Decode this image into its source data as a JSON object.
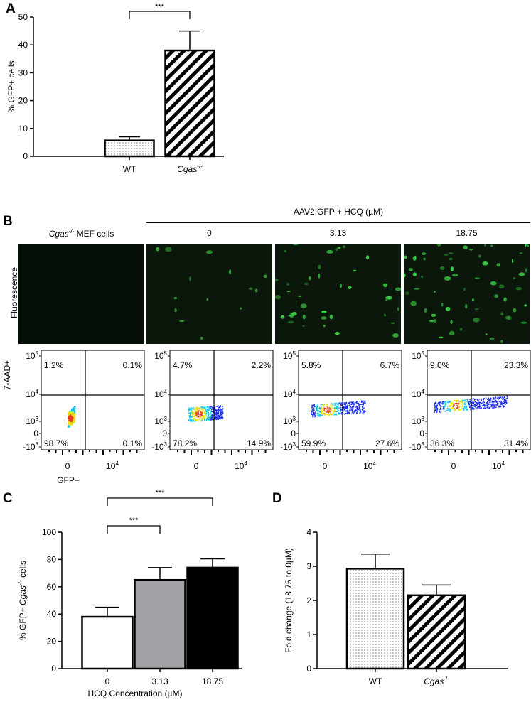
{
  "panel_labels": {
    "a": "A",
    "b": "B",
    "c": "C",
    "d": "D"
  },
  "chart_data": [
    {
      "id": "A",
      "type": "bar",
      "categories": [
        "WT",
        "Cgas-/-"
      ],
      "category_labels": [
        {
          "base": "WT",
          "sup": ""
        },
        {
          "base": "Cgas",
          "sup": "-/-"
        }
      ],
      "values": [
        5.7,
        38.0
      ],
      "errors": [
        1.3,
        7.0
      ],
      "patterns": [
        "dots",
        "stripes"
      ],
      "ylabel": "% GFP+ cells",
      "ylim": [
        0,
        50
      ],
      "yticks": [
        "0",
        "10",
        "20",
        "30",
        "40",
        "50"
      ],
      "significance": [
        {
          "from": 0,
          "to": 1,
          "label": "***"
        }
      ]
    },
    {
      "id": "C",
      "type": "bar",
      "categories": [
        "0",
        "3.13",
        "18.75"
      ],
      "values": [
        38.0,
        65.0,
        74.0
      ],
      "errors": [
        7.0,
        9.0,
        6.5
      ],
      "fills": [
        "#ffffff",
        "#a1a1a6",
        "#000000"
      ],
      "ylabel_base": "% GFP+ ",
      "ylabel_italic": "Cgas",
      "ylabel_sup": "-/-",
      "ylabel_tail": " cells",
      "xlabel": "HCQ Concentration (µM)",
      "ylim": [
        0,
        100
      ],
      "yticks": [
        "0",
        "20",
        "40",
        "60",
        "80",
        "100"
      ],
      "significance": [
        {
          "from": 0,
          "to": 1,
          "label": "***"
        },
        {
          "from": 0,
          "to": 2,
          "label": "***"
        }
      ]
    },
    {
      "id": "D",
      "type": "bar",
      "categories": [
        "WT",
        "Cgas-/-"
      ],
      "category_labels": [
        {
          "base": "WT",
          "sup": ""
        },
        {
          "base": "Cgas",
          "sup": "-/-"
        }
      ],
      "values": [
        2.93,
        2.15
      ],
      "errors": [
        0.43,
        0.3
      ],
      "patterns": [
        "dots",
        "stripes"
      ],
      "ylabel": "Fold change (18.75 to 0µM)",
      "ylim": [
        0,
        4
      ],
      "yticks": [
        "0",
        "1",
        "2",
        "3",
        "4"
      ]
    }
  ],
  "panel_b": {
    "header": "AAV2.GFP + HCQ (µM)",
    "row_label": "Fluorescence",
    "first_col_label_italic": "Cgas",
    "first_col_label_sup": "-/-",
    "first_col_label_tail": " MEF cells",
    "conditions": [
      "0",
      "3.13",
      "18.75"
    ],
    "flow_yaxis_label": "7-AAD+",
    "flow_xaxis_label": "GFP+",
    "flow_yticks": [
      {
        "base": "10",
        "sup": "5"
      },
      {
        "base": "10",
        "sup": "4"
      },
      {
        "base": "10",
        "sup": "3"
      },
      {
        "base": "0",
        "sup": ""
      },
      {
        "base": "-10",
        "sup": "3"
      }
    ],
    "flow_xticks": [
      {
        "base": "0",
        "sup": ""
      },
      {
        "base": "10",
        "sup": "4"
      }
    ],
    "flow_plots": [
      {
        "q_tl": "1.2%",
        "q_tr": "0.1%",
        "q_bl": "98.7%",
        "q_br": "0.1%"
      },
      {
        "q_tl": "4.7%",
        "q_tr": "2.2%",
        "q_bl": "78.2%",
        "q_br": "14.9%"
      },
      {
        "q_tl": "5.8%",
        "q_tr": "6.7%",
        "q_bl": "59.9%",
        "q_br": "27.6%"
      },
      {
        "q_tl": "9.0%",
        "q_tr": "23.3%",
        "q_bl": "36.3%",
        "q_br": "31.4%"
      }
    ],
    "colors": {
      "fluor_bg": "#0c170c",
      "fluor_cell": "#3ddc45",
      "dot_blue": "#1a2cf0",
      "dot_cyan": "#14c8e6",
      "dot_yellow": "#e8e414",
      "dot_red": "#e8401a"
    }
  }
}
